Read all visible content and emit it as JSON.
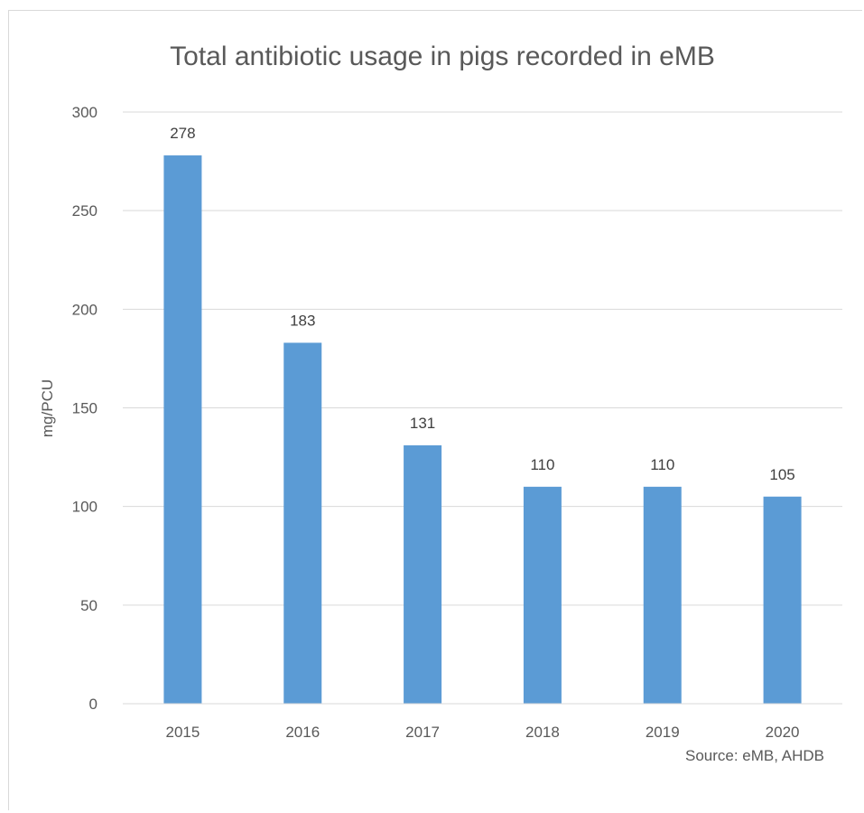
{
  "chart_data": {
    "type": "bar",
    "title": "Total antibiotic usage in pigs recorded in eMB",
    "xlabel": "",
    "ylabel": "mg/PCU",
    "categories": [
      "2015",
      "2016",
      "2017",
      "2018",
      "2019",
      "2020"
    ],
    "values": [
      278,
      183,
      131,
      110,
      110,
      105
    ],
    "data_labels": [
      "278",
      "183",
      "131",
      "110",
      "110",
      "105"
    ],
    "ylim": [
      0,
      300
    ],
    "yticks": [
      0,
      50,
      100,
      150,
      200,
      250,
      300
    ],
    "grid": true,
    "legend": "none",
    "bar_color": "#5b9bd5",
    "source": "Source: eMB, AHDB"
  }
}
